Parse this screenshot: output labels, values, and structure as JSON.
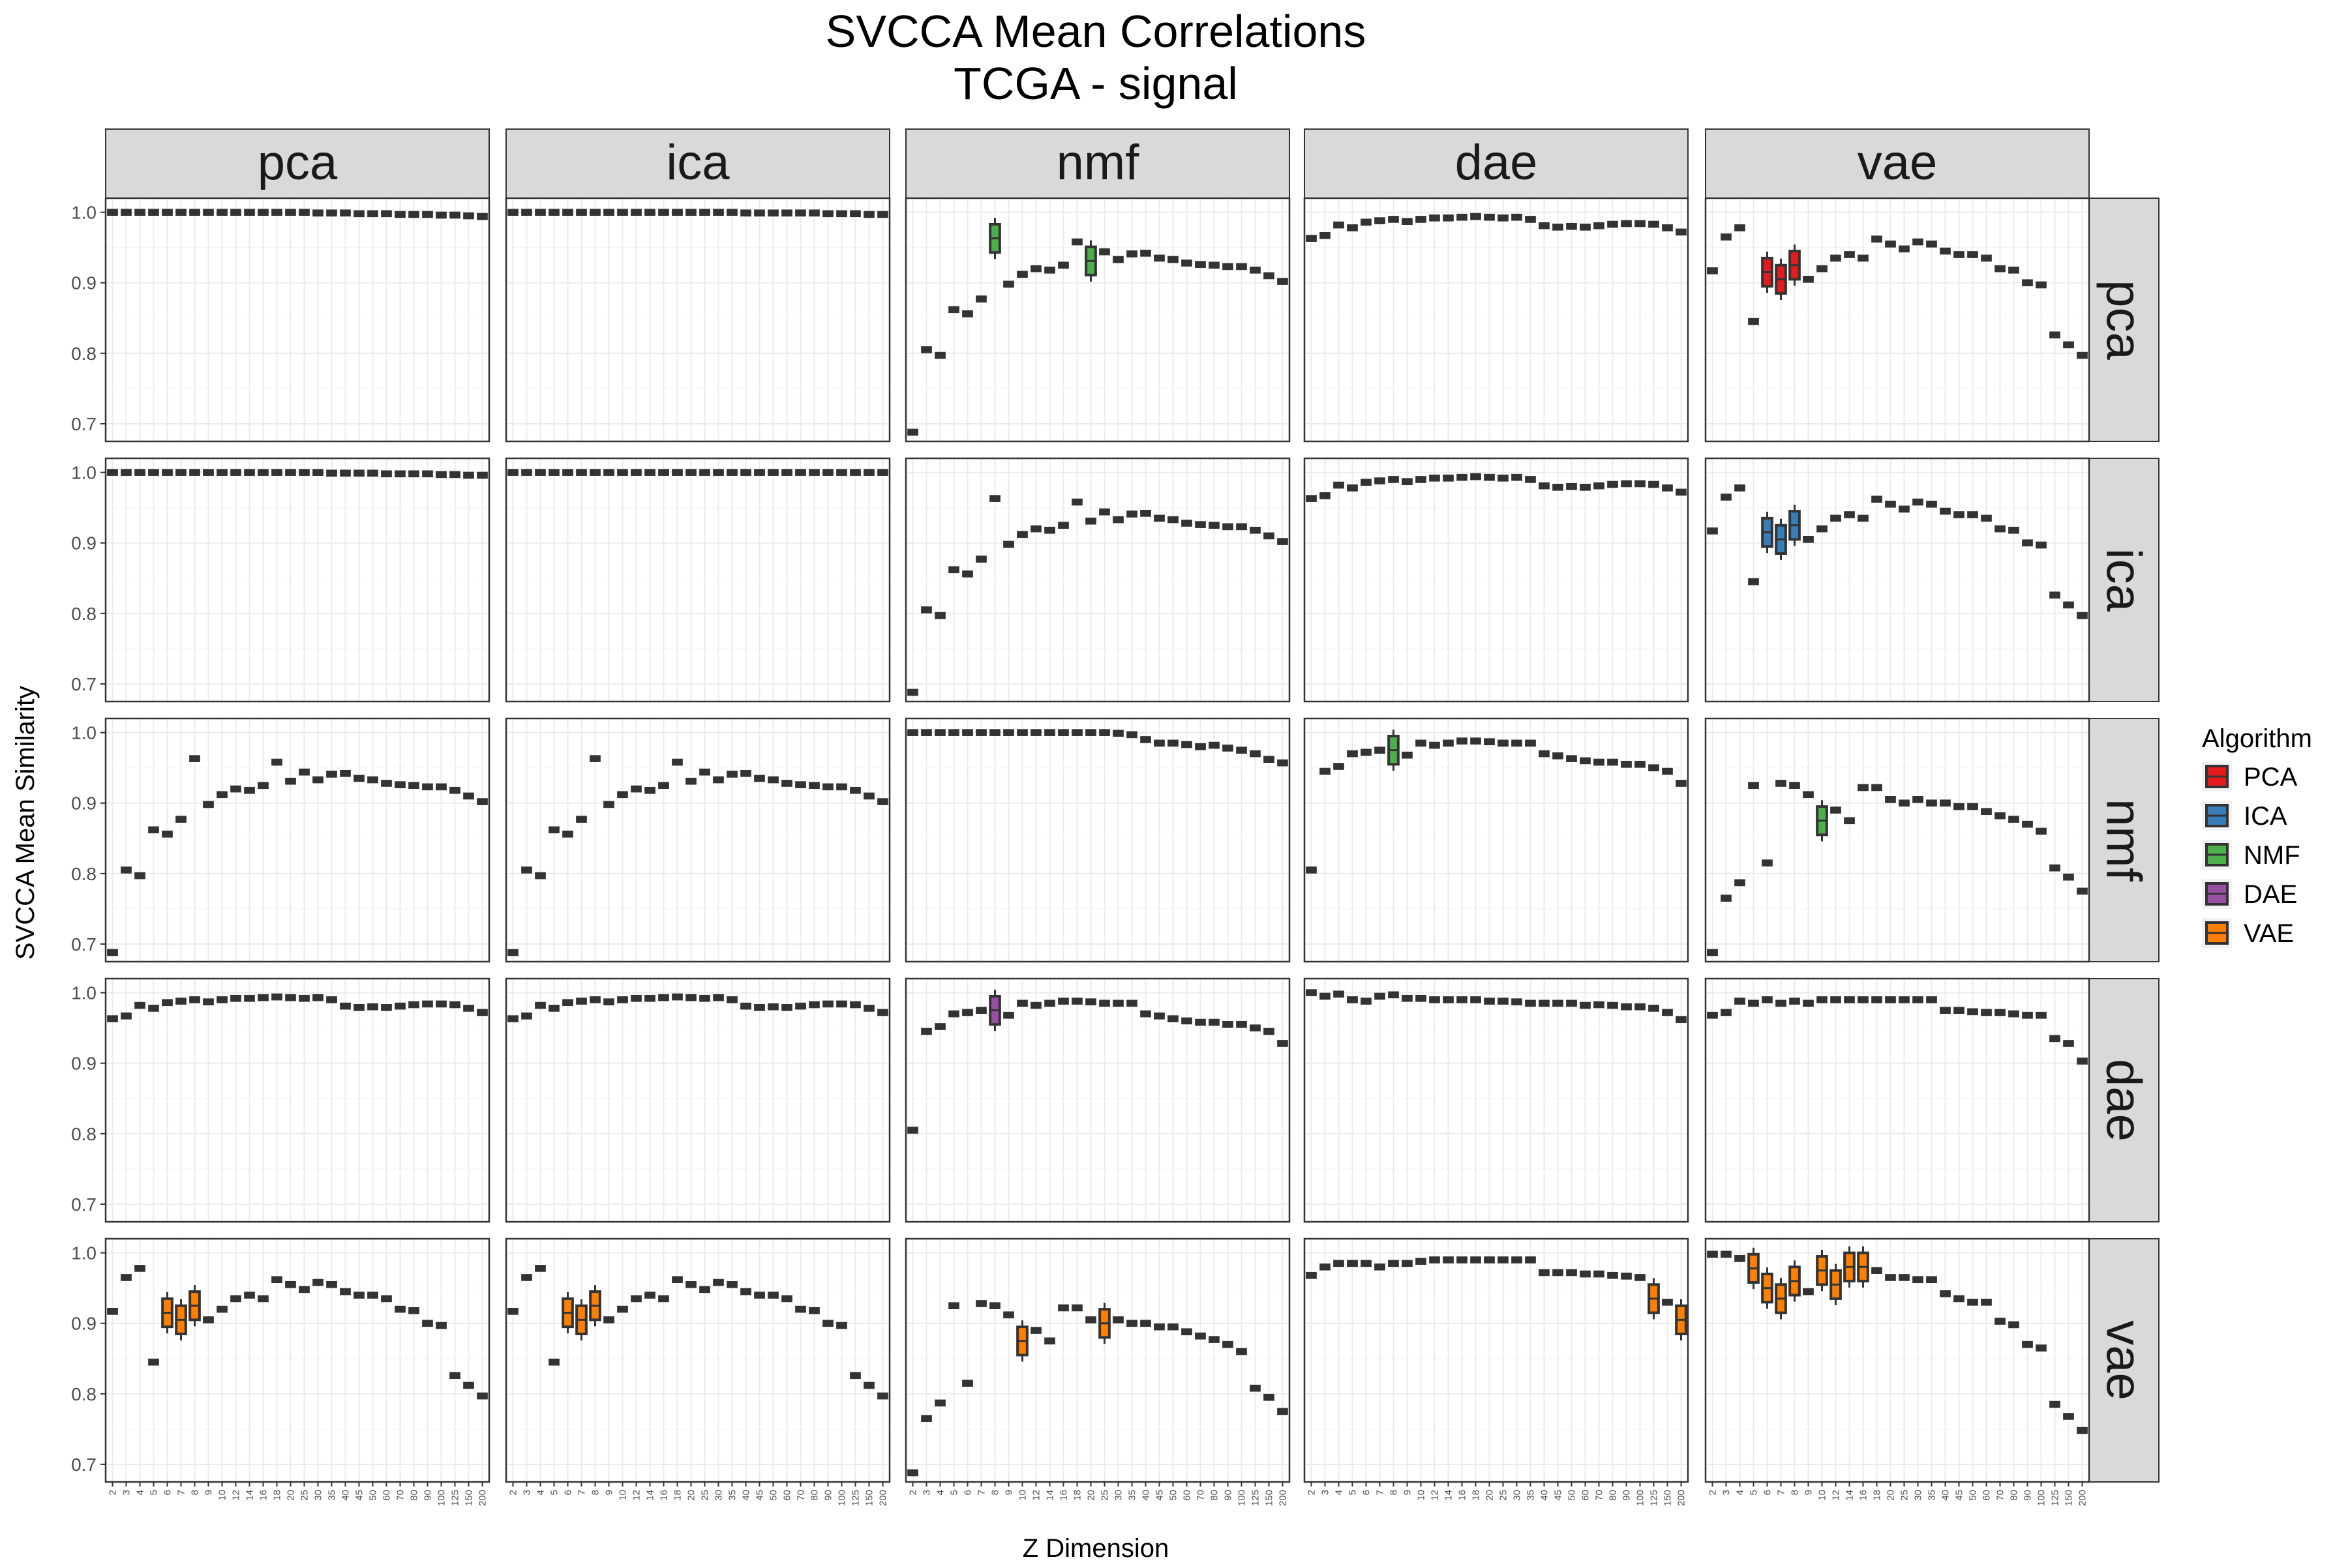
{
  "chart_data": {
    "type": "box",
    "title": "SVCCA Mean Correlations",
    "subtitle": "TCGA - signal",
    "xlabel": "Z Dimension",
    "ylabel": "SVCCA Mean Similarity",
    "ylim": [
      0.675,
      1.02
    ],
    "yticks": [
      "0.7",
      "0.8",
      "0.9",
      "1.0"
    ],
    "grid": true,
    "facet_columns": [
      "pca",
      "ica",
      "nmf",
      "dae",
      "vae"
    ],
    "facet_rows": [
      "pca",
      "ica",
      "nmf",
      "dae",
      "vae"
    ],
    "categories": [
      "2",
      "3",
      "4",
      "5",
      "6",
      "7",
      "8",
      "9",
      "10",
      "12",
      "14",
      "16",
      "18",
      "20",
      "25",
      "30",
      "35",
      "40",
      "45",
      "50",
      "60",
      "70",
      "80",
      "90",
      "100",
      "125",
      "150",
      "200"
    ],
    "legend": {
      "title": "Algorithm",
      "position": "right",
      "items": [
        {
          "label": "PCA",
          "color": "#e41a1c"
        },
        {
          "label": "ICA",
          "color": "#377eb8"
        },
        {
          "label": "NMF",
          "color": "#4daf4a"
        },
        {
          "label": "DAE",
          "color": "#984ea3"
        },
        {
          "label": "VAE",
          "color": "#ff7f00"
        }
      ]
    },
    "box_color": "#333333",
    "panels": [
      {
        "row": "pca",
        "col": "pca",
        "values": [
          1.0,
          1.0,
          1.0,
          1.0,
          1.0,
          1.0,
          1.0,
          1.0,
          1.0,
          1.0,
          1.0,
          1.0,
          1.0,
          1.0,
          1.0,
          0.999,
          0.999,
          0.999,
          0.998,
          0.998,
          0.998,
          0.997,
          0.997,
          0.997,
          0.996,
          0.996,
          0.995,
          0.994
        ]
      },
      {
        "row": "pca",
        "col": "ica",
        "values": [
          1.0,
          1.0,
          1.0,
          1.0,
          1.0,
          1.0,
          1.0,
          1.0,
          1.0,
          1.0,
          1.0,
          1.0,
          1.0,
          1.0,
          1.0,
          1.0,
          1.0,
          0.999,
          0.999,
          0.999,
          0.999,
          0.999,
          0.999,
          0.998,
          0.998,
          0.998,
          0.997,
          0.997
        ]
      },
      {
        "row": "pca",
        "col": "nmf",
        "values": [
          0.688,
          0.805,
          0.797,
          0.862,
          0.856,
          0.877,
          0.963,
          0.898,
          0.912,
          0.92,
          0.918,
          0.925,
          0.958,
          0.931,
          0.944,
          0.933,
          0.941,
          0.942,
          0.935,
          0.933,
          0.928,
          0.926,
          0.925,
          0.923,
          0.923,
          0.918,
          0.91,
          0.902
        ],
        "colored": {
          "8": "nmf",
          "20": "nmf"
        }
      },
      {
        "row": "pca",
        "col": "dae",
        "values": [
          0.963,
          0.967,
          0.982,
          0.978,
          0.986,
          0.988,
          0.99,
          0.987,
          0.99,
          0.992,
          0.992,
          0.993,
          0.994,
          0.993,
          0.992,
          0.993,
          0.99,
          0.981,
          0.979,
          0.98,
          0.979,
          0.981,
          0.983,
          0.984,
          0.984,
          0.983,
          0.978,
          0.972
        ]
      },
      {
        "row": "pca",
        "col": "vae",
        "values": [
          0.917,
          0.965,
          0.978,
          0.845,
          0.915,
          0.905,
          0.925,
          0.905,
          0.92,
          0.935,
          0.94,
          0.935,
          0.962,
          0.955,
          0.948,
          0.958,
          0.955,
          0.945,
          0.94,
          0.94,
          0.935,
          0.92,
          0.918,
          0.9,
          0.897,
          0.826,
          0.812,
          0.797
        ],
        "colored": {
          "6": "PCA",
          "7": "PCA",
          "8": "PCA"
        }
      },
      {
        "row": "ica",
        "col": "pca",
        "values": [
          1.0,
          1.0,
          1.0,
          1.0,
          1.0,
          1.0,
          1.0,
          1.0,
          1.0,
          1.0,
          1.0,
          1.0,
          1.0,
          1.0,
          1.0,
          1.0,
          0.999,
          0.999,
          0.999,
          0.999,
          0.998,
          0.998,
          0.998,
          0.998,
          0.997,
          0.997,
          0.996,
          0.996
        ]
      },
      {
        "row": "ica",
        "col": "ica",
        "values": [
          1.0,
          1.0,
          1.0,
          1.0,
          1.0,
          1.0,
          1.0,
          1.0,
          1.0,
          1.0,
          1.0,
          1.0,
          1.0,
          1.0,
          1.0,
          1.0,
          1.0,
          1.0,
          1.0,
          1.0,
          1.0,
          1.0,
          1.0,
          1.0,
          1.0,
          1.0,
          1.0,
          1.0
        ]
      },
      {
        "row": "ica",
        "col": "nmf",
        "values": [
          0.688,
          0.805,
          0.797,
          0.862,
          0.856,
          0.877,
          0.963,
          0.898,
          0.912,
          0.92,
          0.918,
          0.925,
          0.958,
          0.931,
          0.944,
          0.933,
          0.941,
          0.942,
          0.935,
          0.933,
          0.928,
          0.926,
          0.925,
          0.923,
          0.923,
          0.918,
          0.91,
          0.902
        ]
      },
      {
        "row": "ica",
        "col": "dae",
        "values": [
          0.963,
          0.967,
          0.982,
          0.978,
          0.986,
          0.988,
          0.99,
          0.987,
          0.99,
          0.992,
          0.992,
          0.993,
          0.994,
          0.993,
          0.992,
          0.993,
          0.99,
          0.981,
          0.979,
          0.98,
          0.979,
          0.981,
          0.983,
          0.984,
          0.984,
          0.983,
          0.978,
          0.972
        ]
      },
      {
        "row": "ica",
        "col": "vae",
        "values": [
          0.917,
          0.965,
          0.978,
          0.845,
          0.915,
          0.905,
          0.925,
          0.905,
          0.92,
          0.935,
          0.94,
          0.935,
          0.962,
          0.955,
          0.948,
          0.958,
          0.955,
          0.945,
          0.94,
          0.94,
          0.935,
          0.92,
          0.918,
          0.9,
          0.897,
          0.826,
          0.812,
          0.797
        ],
        "colored": {
          "6": "ICA",
          "7": "ICA",
          "8": "ICA"
        }
      },
      {
        "row": "nmf",
        "col": "pca",
        "values": [
          0.688,
          0.805,
          0.797,
          0.862,
          0.856,
          0.877,
          0.963,
          0.898,
          0.912,
          0.92,
          0.918,
          0.925,
          0.958,
          0.931,
          0.944,
          0.933,
          0.941,
          0.942,
          0.935,
          0.933,
          0.928,
          0.926,
          0.925,
          0.923,
          0.923,
          0.918,
          0.91,
          0.902
        ]
      },
      {
        "row": "nmf",
        "col": "ica",
        "values": [
          0.688,
          0.805,
          0.797,
          0.862,
          0.856,
          0.877,
          0.963,
          0.898,
          0.912,
          0.92,
          0.918,
          0.925,
          0.958,
          0.931,
          0.944,
          0.933,
          0.941,
          0.942,
          0.935,
          0.933,
          0.928,
          0.926,
          0.925,
          0.923,
          0.923,
          0.918,
          0.91,
          0.902
        ]
      },
      {
        "row": "nmf",
        "col": "nmf",
        "values": [
          1.0,
          1.0,
          1.0,
          1.0,
          1.0,
          1.0,
          1.0,
          1.0,
          1.0,
          1.0,
          1.0,
          1.0,
          1.0,
          1.0,
          1.0,
          0.999,
          0.997,
          0.99,
          0.985,
          0.985,
          0.983,
          0.98,
          0.982,
          0.978,
          0.975,
          0.97,
          0.962,
          0.957
        ]
      },
      {
        "row": "nmf",
        "col": "dae",
        "values": [
          0.805,
          0.945,
          0.952,
          0.97,
          0.972,
          0.975,
          0.975,
          0.968,
          0.985,
          0.982,
          0.985,
          0.988,
          0.988,
          0.987,
          0.985,
          0.985,
          0.985,
          0.97,
          0.967,
          0.963,
          0.96,
          0.958,
          0.958,
          0.955,
          0.955,
          0.95,
          0.945,
          0.928
        ],
        "colored": {
          "8": "NMF"
        }
      },
      {
        "row": "nmf",
        "col": "vae",
        "values": [
          0.688,
          0.765,
          0.787,
          0.925,
          0.815,
          0.928,
          0.925,
          0.912,
          0.875,
          0.89,
          0.875,
          0.922,
          0.922,
          0.905,
          0.9,
          0.905,
          0.9,
          0.9,
          0.895,
          0.895,
          0.888,
          0.882,
          0.877,
          0.87,
          0.86,
          0.808,
          0.795,
          0.775
        ],
        "colored": {
          "10": "NMF"
        }
      },
      {
        "row": "dae",
        "col": "pca",
        "values": [
          0.963,
          0.967,
          0.982,
          0.978,
          0.986,
          0.988,
          0.99,
          0.987,
          0.99,
          0.992,
          0.992,
          0.993,
          0.994,
          0.993,
          0.992,
          0.993,
          0.99,
          0.981,
          0.979,
          0.98,
          0.979,
          0.981,
          0.983,
          0.984,
          0.984,
          0.983,
          0.978,
          0.972
        ]
      },
      {
        "row": "dae",
        "col": "ica",
        "values": [
          0.963,
          0.967,
          0.982,
          0.978,
          0.986,
          0.988,
          0.99,
          0.987,
          0.99,
          0.992,
          0.992,
          0.993,
          0.994,
          0.993,
          0.992,
          0.993,
          0.99,
          0.981,
          0.979,
          0.98,
          0.979,
          0.981,
          0.983,
          0.984,
          0.984,
          0.983,
          0.978,
          0.972
        ]
      },
      {
        "row": "dae",
        "col": "nmf",
        "values": [
          0.805,
          0.945,
          0.952,
          0.97,
          0.972,
          0.975,
          0.975,
          0.968,
          0.985,
          0.982,
          0.985,
          0.988,
          0.988,
          0.987,
          0.985,
          0.985,
          0.985,
          0.97,
          0.967,
          0.963,
          0.96,
          0.958,
          0.958,
          0.955,
          0.955,
          0.95,
          0.945,
          0.928
        ],
        "colored": {
          "8": "DAE"
        }
      },
      {
        "row": "dae",
        "col": "dae",
        "values": [
          1.0,
          0.995,
          0.998,
          0.99,
          0.988,
          0.995,
          0.997,
          0.992,
          0.992,
          0.99,
          0.99,
          0.99,
          0.99,
          0.988,
          0.988,
          0.987,
          0.985,
          0.985,
          0.985,
          0.985,
          0.982,
          0.983,
          0.982,
          0.98,
          0.98,
          0.978,
          0.972,
          0.962
        ]
      },
      {
        "row": "dae",
        "col": "vae",
        "values": [
          0.968,
          0.972,
          0.988,
          0.985,
          0.99,
          0.985,
          0.988,
          0.985,
          0.99,
          0.99,
          0.99,
          0.99,
          0.99,
          0.99,
          0.99,
          0.99,
          0.99,
          0.975,
          0.975,
          0.973,
          0.972,
          0.972,
          0.97,
          0.968,
          0.968,
          0.935,
          0.928,
          0.903
        ]
      },
      {
        "row": "vae",
        "col": "pca",
        "values": [
          0.917,
          0.965,
          0.978,
          0.845,
          0.915,
          0.905,
          0.925,
          0.905,
          0.92,
          0.935,
          0.94,
          0.935,
          0.962,
          0.955,
          0.948,
          0.958,
          0.955,
          0.945,
          0.94,
          0.94,
          0.935,
          0.92,
          0.918,
          0.9,
          0.897,
          0.826,
          0.812,
          0.797
        ],
        "colored": {
          "6": "VAE",
          "7": "VAE",
          "8": "VAE"
        }
      },
      {
        "row": "vae",
        "col": "ica",
        "values": [
          0.917,
          0.965,
          0.978,
          0.845,
          0.915,
          0.905,
          0.925,
          0.905,
          0.92,
          0.935,
          0.94,
          0.935,
          0.962,
          0.955,
          0.948,
          0.958,
          0.955,
          0.945,
          0.94,
          0.94,
          0.935,
          0.92,
          0.918,
          0.9,
          0.897,
          0.826,
          0.812,
          0.797
        ],
        "colored": {
          "6": "VAE",
          "7": "VAE",
          "8": "VAE"
        }
      },
      {
        "row": "vae",
        "col": "nmf",
        "values": [
          0.688,
          0.765,
          0.787,
          0.925,
          0.815,
          0.928,
          0.925,
          0.912,
          0.875,
          0.89,
          0.875,
          0.922,
          0.922,
          0.905,
          0.9,
          0.905,
          0.9,
          0.9,
          0.895,
          0.895,
          0.888,
          0.882,
          0.877,
          0.87,
          0.86,
          0.808,
          0.795,
          0.775
        ],
        "colored": {
          "10": "VAE",
          "25": "VAE"
        }
      },
      {
        "row": "vae",
        "col": "dae",
        "values": [
          0.968,
          0.98,
          0.985,
          0.985,
          0.985,
          0.98,
          0.985,
          0.985,
          0.988,
          0.99,
          0.99,
          0.99,
          0.99,
          0.99,
          0.99,
          0.99,
          0.99,
          0.972,
          0.972,
          0.972,
          0.97,
          0.97,
          0.968,
          0.967,
          0.965,
          0.935,
          0.93,
          0.905
        ],
        "colored": {
          "125": "VAE",
          "200": "VAE"
        }
      },
      {
        "row": "vae",
        "col": "vae",
        "values": [
          0.998,
          0.998,
          0.992,
          0.978,
          0.95,
          0.935,
          0.96,
          0.945,
          0.975,
          0.955,
          0.98,
          0.98,
          0.975,
          0.965,
          0.965,
          0.962,
          0.962,
          0.942,
          0.935,
          0.93,
          0.93,
          0.903,
          0.898,
          0.87,
          0.865,
          0.785,
          0.768,
          0.748
        ],
        "colored": {
          "5": "VAE",
          "6": "VAE",
          "7": "VAE",
          "8": "VAE",
          "10": "VAE",
          "12": "VAE",
          "14": "VAE",
          "16": "VAE"
        }
      }
    ]
  }
}
